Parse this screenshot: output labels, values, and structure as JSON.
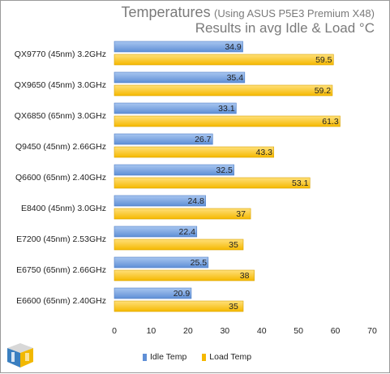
{
  "chart_data": {
    "type": "bar",
    "orientation": "horizontal",
    "title": "Temperatures",
    "title_note": "(Using ASUS P5E3 Premium X48)",
    "subtitle": "Results in avg Idle & Load °C",
    "categories": [
      "QX9770 (45nm) 3.2GHz",
      "QX9650 (45nm) 3.0GHz",
      "QX6850 (65nm) 3.0GHz",
      "Q9450 (45nm) 2.66GHz",
      "Q6600 (65nm) 2.40GHz",
      "E8400 (45nm) 3.0GHz",
      "E7200 (45nm) 2.53GHz",
      "E6750 (65nm) 2.66GHz",
      "E6600 (65nm) 2.40GHz"
    ],
    "series": [
      {
        "name": "Idle Temp",
        "color": "#7ea6e0",
        "values": [
          34.9,
          35.4,
          33.1,
          26.7,
          32.5,
          24.8,
          22.4,
          25.5,
          20.9
        ]
      },
      {
        "name": "Load Temp",
        "color": "#ffcc44",
        "values": [
          59.5,
          59.2,
          61.3,
          43.3,
          53.1,
          37,
          35,
          38,
          35
        ]
      }
    ],
    "xlim": [
      0,
      70
    ],
    "xticks": [
      0,
      10,
      20,
      30,
      40,
      50,
      60,
      70
    ],
    "grid": false,
    "legend_position": "bottom"
  }
}
